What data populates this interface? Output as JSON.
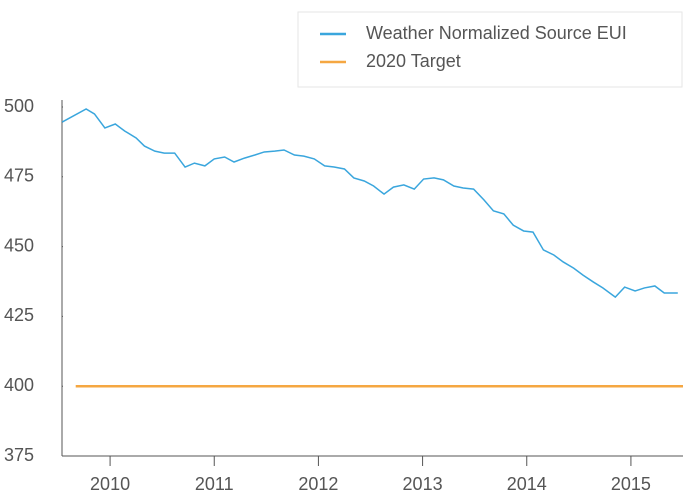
{
  "chart_data": {
    "type": "line",
    "series": [
      {
        "name": "Weather Normalized Source EUI",
        "color": "#3aa6dd",
        "x": [
          2010.04,
          2010.27,
          2010.35,
          2010.45,
          2010.55,
          2010.64,
          2010.75,
          2010.83,
          2010.93,
          2011.02,
          2011.12,
          2011.22,
          2011.31,
          2011.41,
          2011.5,
          2011.6,
          2011.69,
          2011.79,
          2011.89,
          2011.98,
          2012.08,
          2012.17,
          2012.27,
          2012.36,
          2012.46,
          2012.56,
          2012.65,
          2012.75,
          2012.84,
          2012.94,
          2013.03,
          2013.13,
          2013.22,
          2013.32,
          2013.42,
          2013.51,
          2013.61,
          2013.7,
          2013.8,
          2013.89,
          2013.99,
          2014.09,
          2014.18,
          2014.28,
          2014.37,
          2014.47,
          2014.56,
          2014.66,
          2014.76,
          2014.85,
          2014.95,
          2015.04,
          2015.14,
          2015.23,
          2015.35,
          2015.44,
          2015.54,
          2015.63,
          2015.73,
          2015.82,
          2015.95
        ],
        "values": [
          494.6,
          499.3,
          497.5,
          492.5,
          493.9,
          491.4,
          488.9,
          486.0,
          484.2,
          483.5,
          483.5,
          478.5,
          479.9,
          478.9,
          481.4,
          482.1,
          480.3,
          481.7,
          482.8,
          483.9,
          484.2,
          484.6,
          482.8,
          482.4,
          481.4,
          478.9,
          478.5,
          477.8,
          474.6,
          473.5,
          471.7,
          468.8,
          471.3,
          472.1,
          470.6,
          474.2,
          474.6,
          473.9,
          471.7,
          471.0,
          470.6,
          466.7,
          462.8,
          461.7,
          457.7,
          455.6,
          455.2,
          448.8,
          447.0,
          444.5,
          442.3,
          439.8,
          437.3,
          435.2,
          431.9,
          435.5,
          434.1,
          435.2,
          435.9,
          433.4,
          433.4
        ]
      },
      {
        "name": "2020 Target",
        "color": "#f5a742",
        "x": [
          2010.17,
          2016
        ],
        "values": [
          400,
          400
        ]
      }
    ],
    "xlim": [
      2010,
      2016
    ],
    "xticks": [
      {
        "value": 2010.5,
        "label": "2010"
      },
      {
        "value": 2011.5,
        "label": "2011"
      },
      {
        "value": 2012.5,
        "label": "2012"
      },
      {
        "value": 2013.5,
        "label": "2013"
      },
      {
        "value": 2014.5,
        "label": "2014"
      },
      {
        "value": 2015.5,
        "label": "2015"
      }
    ],
    "ylim": [
      375,
      500
    ],
    "yticks": [
      375,
      400,
      425,
      450,
      475,
      500
    ],
    "grid": false,
    "legend": "top-right"
  }
}
